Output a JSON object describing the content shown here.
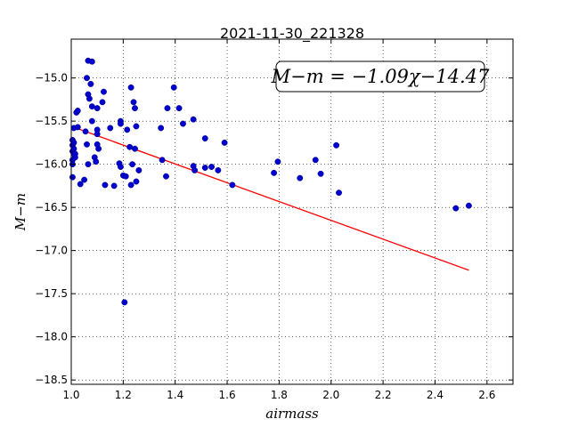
{
  "chart_data": {
    "type": "scatter",
    "title": "2021-11-30_221328",
    "xlabel": "airmass",
    "ylabel": "M−m",
    "xlim": [
      1.0,
      2.7
    ],
    "ylim": [
      -18.55,
      -14.55
    ],
    "y_inverted": true,
    "grid": true,
    "x_ticks": [
      "1.0",
      "1.2",
      "1.4",
      "1.6",
      "1.8",
      "2.0",
      "2.2",
      "2.4",
      "2.6"
    ],
    "y_ticks": [
      "−15.0",
      "−15.5",
      "−16.0",
      "−16.5",
      "−17.0",
      "−17.5",
      "−18.0",
      "−18.5"
    ],
    "annotation": "M−m = −1.09χ−14.47",
    "fit": {
      "slope": -1.09,
      "intercept": -14.47,
      "x_range": [
        1.0,
        2.53
      ],
      "color": "#ff0000"
    },
    "point_color": "#0000cc",
    "points": [
      [
        1.005,
        -15.72
      ],
      [
        1.005,
        -15.78
      ],
      [
        1.005,
        -15.85
      ],
      [
        1.005,
        -15.95
      ],
      [
        1.005,
        -16.0
      ],
      [
        1.005,
        -16.15
      ],
      [
        1.01,
        -15.58
      ],
      [
        1.01,
        -15.75
      ],
      [
        1.01,
        -15.82
      ],
      [
        1.01,
        -15.88
      ],
      [
        1.015,
        -15.88
      ],
      [
        1.015,
        -15.92
      ],
      [
        1.02,
        -15.4
      ],
      [
        1.025,
        -15.38
      ],
      [
        1.025,
        -15.57
      ],
      [
        1.035,
        -16.23
      ],
      [
        1.05,
        -16.18
      ],
      [
        1.055,
        -15.62
      ],
      [
        1.06,
        -15.0
      ],
      [
        1.06,
        -15.77
      ],
      [
        1.065,
        -14.8
      ],
      [
        1.065,
        -15.19
      ],
      [
        1.065,
        -16.0
      ],
      [
        1.07,
        -15.24
      ],
      [
        1.075,
        -15.07
      ],
      [
        1.08,
        -14.81
      ],
      [
        1.08,
        -15.5
      ],
      [
        1.08,
        -15.33
      ],
      [
        1.09,
        -15.92
      ],
      [
        1.095,
        -15.97
      ],
      [
        1.1,
        -15.35
      ],
      [
        1.1,
        -15.6
      ],
      [
        1.1,
        -15.65
      ],
      [
        1.1,
        -15.77
      ],
      [
        1.105,
        -15.82
      ],
      [
        1.12,
        -15.28
      ],
      [
        1.125,
        -15.16
      ],
      [
        1.13,
        -16.24
      ],
      [
        1.15,
        -15.58
      ],
      [
        1.165,
        -16.25
      ],
      [
        1.185,
        -15.99
      ],
      [
        1.19,
        -15.5
      ],
      [
        1.19,
        -15.53
      ],
      [
        1.19,
        -16.03
      ],
      [
        1.2,
        -16.13
      ],
      [
        1.205,
        -17.6
      ],
      [
        1.21,
        -16.14
      ],
      [
        1.215,
        -15.6
      ],
      [
        1.225,
        -15.8
      ],
      [
        1.23,
        -15.11
      ],
      [
        1.23,
        -16.24
      ],
      [
        1.235,
        -16.0
      ],
      [
        1.24,
        -15.28
      ],
      [
        1.245,
        -15.35
      ],
      [
        1.245,
        -15.82
      ],
      [
        1.25,
        -15.56
      ],
      [
        1.25,
        -16.2
      ],
      [
        1.26,
        -16.07
      ],
      [
        1.345,
        -15.58
      ],
      [
        1.35,
        -15.95
      ],
      [
        1.365,
        -16.14
      ],
      [
        1.37,
        -15.35
      ],
      [
        1.395,
        -15.11
      ],
      [
        1.415,
        -15.35
      ],
      [
        1.43,
        -15.53
      ],
      [
        1.47,
        -15.48
      ],
      [
        1.47,
        -16.02
      ],
      [
        1.475,
        -16.07
      ],
      [
        1.515,
        -15.7
      ],
      [
        1.515,
        -16.04
      ],
      [
        1.54,
        -16.03
      ],
      [
        1.565,
        -16.07
      ],
      [
        1.59,
        -15.75
      ],
      [
        1.62,
        -16.24
      ],
      [
        1.78,
        -16.1
      ],
      [
        1.795,
        -15.97
      ],
      [
        1.88,
        -16.16
      ],
      [
        1.94,
        -15.95
      ],
      [
        1.96,
        -16.11
      ],
      [
        2.02,
        -15.78
      ],
      [
        2.03,
        -16.33
      ],
      [
        2.48,
        -16.51
      ],
      [
        2.53,
        -16.48
      ]
    ]
  }
}
